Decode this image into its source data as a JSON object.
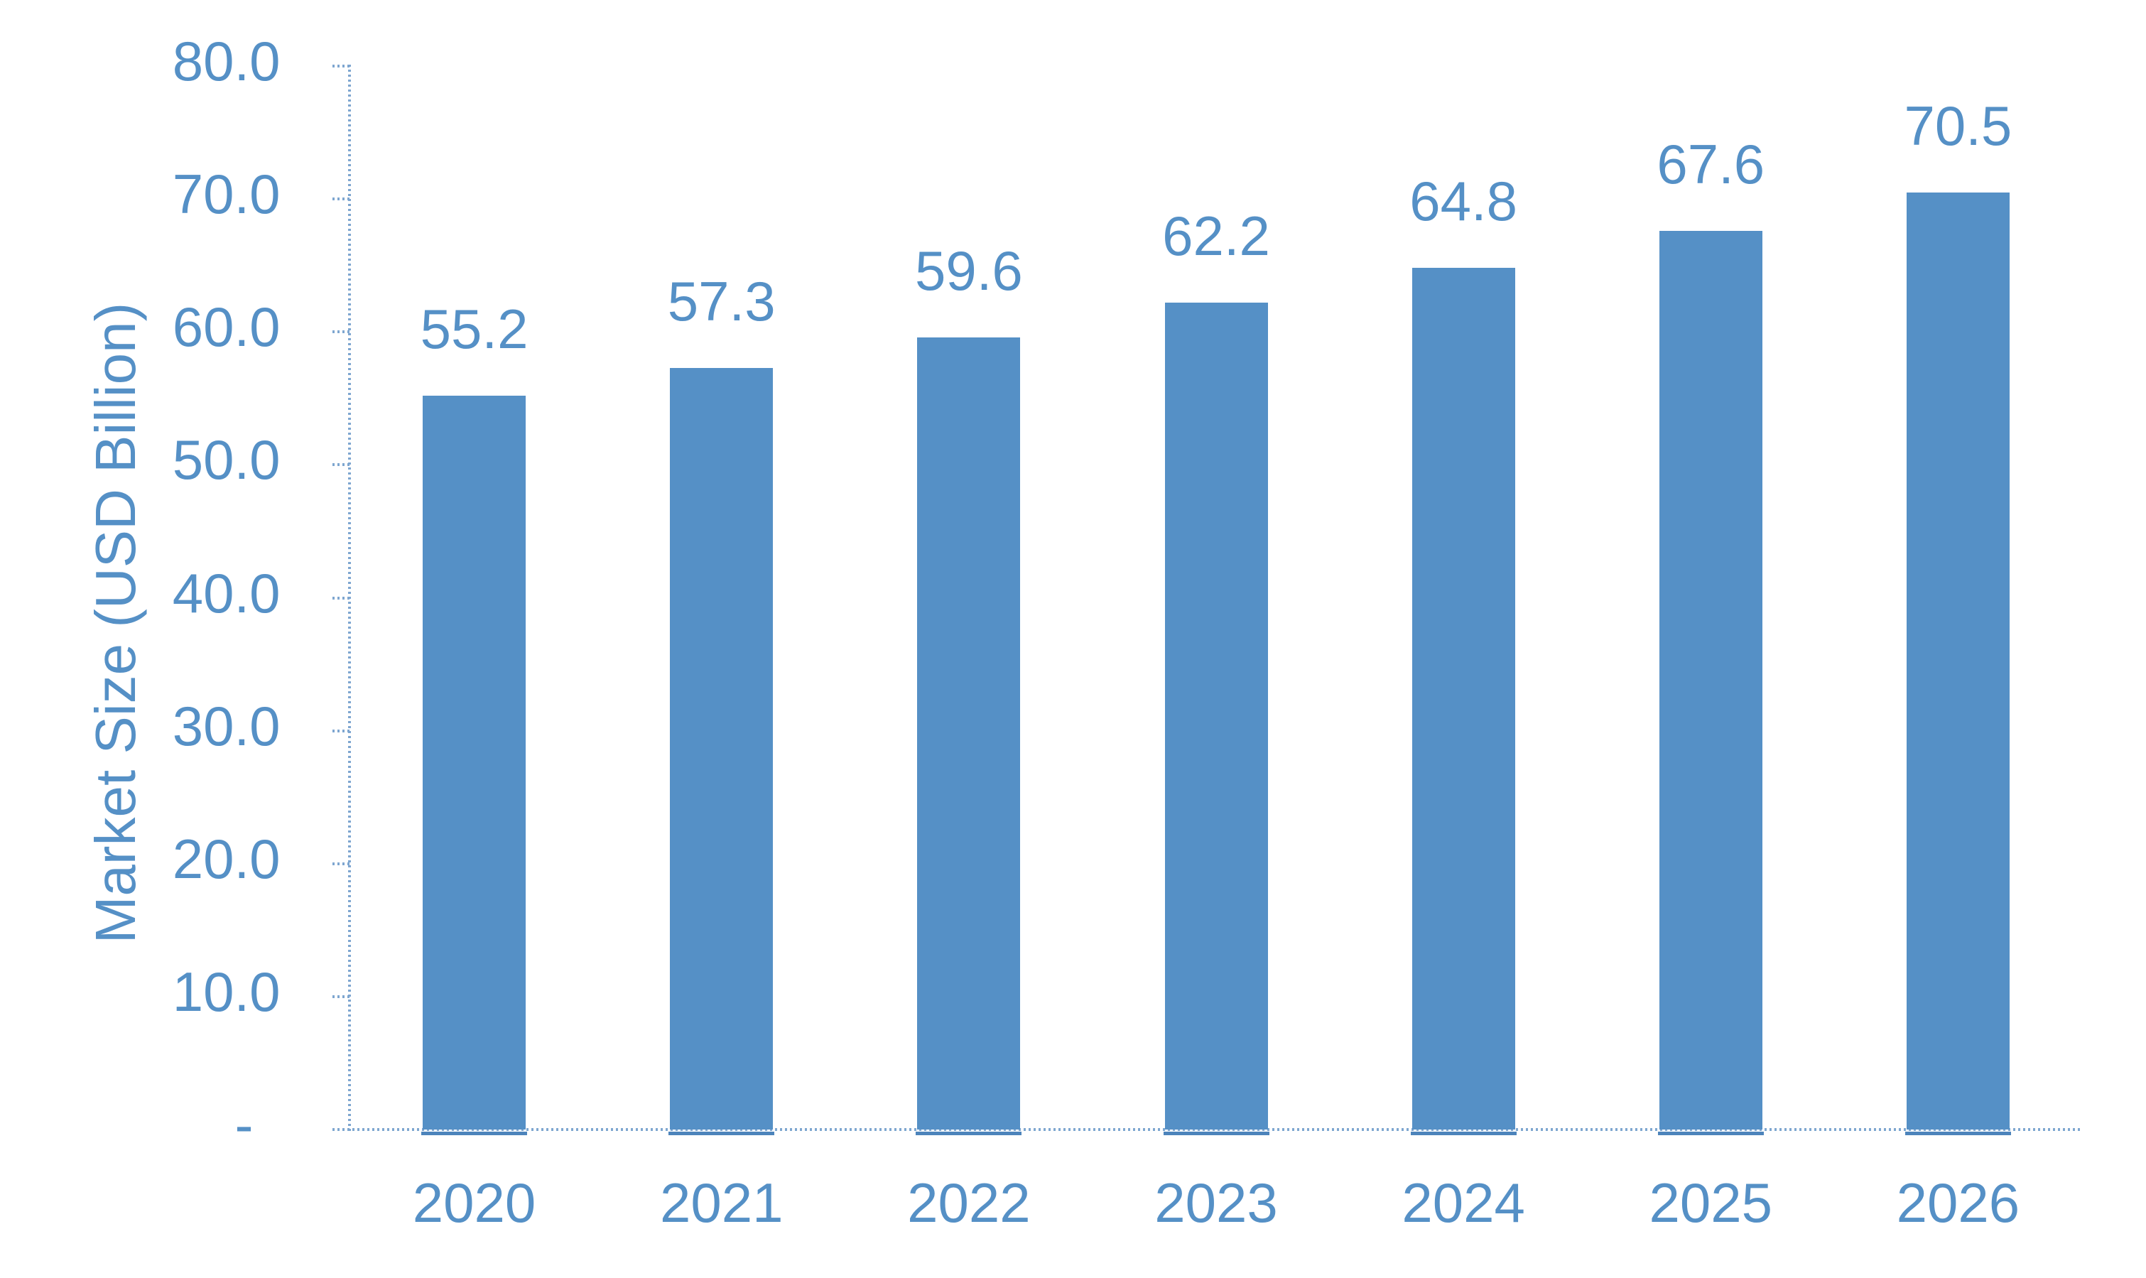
{
  "chart_data": {
    "type": "bar",
    "title": "",
    "xlabel": "",
    "ylabel": "Market Size (USD Billion)",
    "categories": [
      "2020",
      "2021",
      "2022",
      "2023",
      "2024",
      "2025",
      "2026"
    ],
    "values": [
      55.2,
      57.3,
      59.6,
      62.2,
      64.8,
      67.6,
      70.5
    ],
    "value_labels": [
      "55.2",
      "57.3",
      "59.6",
      "62.2",
      "64.8",
      "67.6",
      "70.5"
    ],
    "series_name": "Market Size",
    "ylim": [
      0,
      80
    ],
    "ytick_step": 10,
    "yticks": [
      {
        "value": 0,
        "label": "-"
      },
      {
        "value": 10,
        "label": "10.0"
      },
      {
        "value": 20,
        "label": "20.0"
      },
      {
        "value": 30,
        "label": "30.0"
      },
      {
        "value": 40,
        "label": "40.0"
      },
      {
        "value": 50,
        "label": "50.0"
      },
      {
        "value": 60,
        "label": "60.0"
      },
      {
        "value": 70,
        "label": "70.0"
      },
      {
        "value": 80,
        "label": "80.0"
      }
    ],
    "grid": false,
    "legend": "none",
    "bar_label_position": "outside-end",
    "colors": {
      "bar": "#5590C6",
      "bar_baseline": "#4D84BB",
      "label_text": "#5590C6",
      "axis_line": "#7EA6D0",
      "background": "#FFFFFF"
    }
  }
}
